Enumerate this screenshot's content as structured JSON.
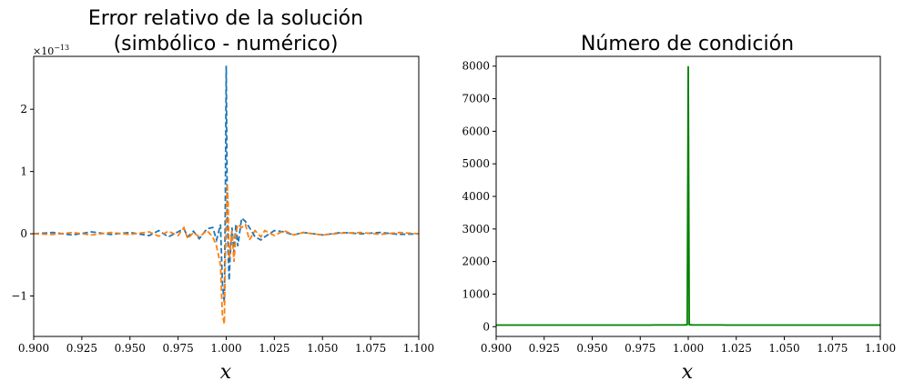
{
  "chart_data": [
    {
      "type": "line",
      "title_line1": "Error relativo de la solución",
      "title_line2": "(simbólico - numérico)",
      "xlabel": "x",
      "ylabel": "",
      "multiplier": "×10",
      "multiplier_exp": "−13",
      "xlim": [
        0.9,
        1.1
      ],
      "ylim": [
        -1.65,
        2.85
      ],
      "xticks": [
        "0.900",
        "0.925",
        "0.950",
        "0.975",
        "1.000",
        "1.025",
        "1.050",
        "1.075",
        "1.100"
      ],
      "yticks": [
        {
          "v": -1,
          "label": "−1"
        },
        {
          "v": 0,
          "label": "0"
        },
        {
          "v": 1,
          "label": "1"
        },
        {
          "v": 2,
          "label": "2"
        }
      ],
      "series": [
        {
          "color": "#1f77b4",
          "dash": "6,3",
          "x": [
            0.9,
            0.91,
            0.92,
            0.93,
            0.94,
            0.95,
            0.96,
            0.965,
            0.97,
            0.975,
            0.978,
            0.98,
            0.983,
            0.986,
            0.99,
            0.993,
            0.995,
            0.997,
            0.998,
            0.999,
            0.9995,
            1.0,
            1.0005,
            1.001,
            1.0015,
            1.002,
            1.003,
            1.004,
            1.005,
            1.006,
            1.008,
            1.01,
            1.012,
            1.015,
            1.018,
            1.02,
            1.025,
            1.03,
            1.035,
            1.04,
            1.05,
            1.06,
            1.07,
            1.08,
            1.09,
            1.1
          ],
          "y": [
            0.0,
            0.02,
            -0.02,
            0.03,
            -0.01,
            0.02,
            -0.03,
            0.05,
            -0.05,
            0.03,
            0.08,
            -0.05,
            0.04,
            -0.08,
            0.08,
            0.1,
            -0.1,
            0.15,
            -0.8,
            -1.1,
            0.3,
            2.7,
            0.5,
            -0.3,
            -0.75,
            -0.4,
            0.1,
            -0.3,
            0.15,
            -0.2,
            0.25,
            0.2,
            0.1,
            -0.05,
            -0.1,
            -0.05,
            0.05,
            0.03,
            -0.02,
            0.02,
            -0.02,
            0.02,
            0.0,
            0.02,
            -0.01,
            0.0
          ]
        },
        {
          "color": "#ff7f0e",
          "dash": "6,3",
          "x": [
            0.9,
            0.91,
            0.92,
            0.93,
            0.94,
            0.95,
            0.96,
            0.965,
            0.97,
            0.975,
            0.978,
            0.98,
            0.983,
            0.986,
            0.99,
            0.993,
            0.995,
            0.997,
            0.998,
            0.999,
            0.9995,
            1.0,
            1.0005,
            1.001,
            1.0015,
            1.002,
            1.003,
            1.004,
            1.005,
            1.006,
            1.008,
            1.01,
            1.012,
            1.015,
            1.018,
            1.02,
            1.025,
            1.03,
            1.035,
            1.04,
            1.05,
            1.06,
            1.07,
            1.08,
            1.09,
            1.1
          ],
          "y": [
            0.0,
            -0.01,
            0.02,
            -0.02,
            0.02,
            -0.01,
            0.03,
            -0.04,
            0.04,
            -0.03,
            0.1,
            -0.08,
            0.02,
            -0.05,
            0.05,
            -0.05,
            -0.2,
            -0.5,
            -1.3,
            -1.45,
            -0.5,
            0.2,
            0.8,
            0.5,
            -0.4,
            -0.3,
            0.05,
            -0.45,
            0.0,
            0.15,
            0.1,
            0.15,
            -0.1,
            0.05,
            -0.05,
            0.05,
            -0.03,
            0.05,
            -0.02,
            0.02,
            -0.02,
            0.01,
            0.02,
            -0.01,
            0.02,
            0.0
          ]
        }
      ]
    },
    {
      "type": "line",
      "title": "Número de condición",
      "xlabel": "x",
      "ylabel": "",
      "xlim": [
        0.9,
        1.1
      ],
      "ylim": [
        -300,
        8300
      ],
      "xticks": [
        "0.900",
        "0.925",
        "0.950",
        "0.975",
        "1.000",
        "1.025",
        "1.050",
        "1.075",
        "1.100"
      ],
      "yticks": [
        {
          "v": 0,
          "label": "0"
        },
        {
          "v": 1000,
          "label": "1000"
        },
        {
          "v": 2000,
          "label": "2000"
        },
        {
          "v": 3000,
          "label": "3000"
        },
        {
          "v": 4000,
          "label": "4000"
        },
        {
          "v": 5000,
          "label": "5000"
        },
        {
          "v": 6000,
          "label": "6000"
        },
        {
          "v": 7000,
          "label": "7000"
        },
        {
          "v": 8000,
          "label": "8000"
        }
      ],
      "series": [
        {
          "color": "#008000",
          "peak": 8000,
          "base": 50,
          "scale": 0.002
        }
      ]
    }
  ]
}
